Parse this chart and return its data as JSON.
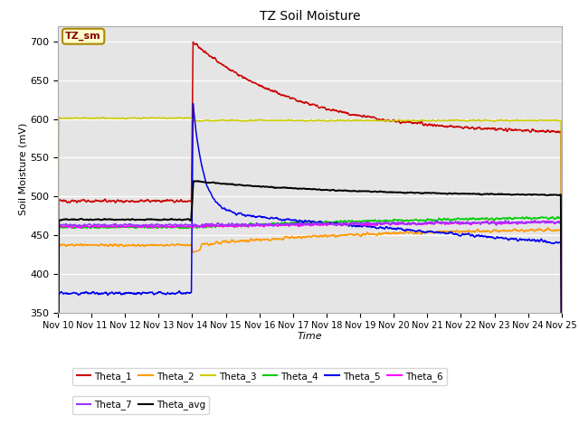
{
  "title": "TZ Soil Moisture",
  "xlabel": "Time",
  "ylabel": "Soil Moisture (mV)",
  "ylim": [
    350,
    720
  ],
  "xlim": [
    0,
    15
  ],
  "yticks": [
    350,
    400,
    450,
    500,
    550,
    600,
    650,
    700
  ],
  "xtick_labels": [
    "Nov 10",
    "Nov 11",
    "Nov 12",
    "Nov 13",
    "Nov 14",
    "Nov 15",
    "Nov 16",
    "Nov 17",
    "Nov 18",
    "Nov 19",
    "Nov 20",
    "Nov 21",
    "Nov 22",
    "Nov 23",
    "Nov 24",
    "Nov 25"
  ],
  "background_color": "#e5e5e5",
  "legend_label": "TZ_sm",
  "series_colors": {
    "Theta_1": "#cc0000",
    "Theta_2": "#ff9900",
    "Theta_3": "#cccc00",
    "Theta_4": "#00cc00",
    "Theta_5": "#0000ee",
    "Theta_6": "#ff00ff",
    "Theta_7": "#9933ff",
    "Theta_avg": "#000000"
  },
  "legend_row1": [
    "Theta_1",
    "Theta_2",
    "Theta_3",
    "Theta_4",
    "Theta_5",
    "Theta_6"
  ],
  "legend_row2": [
    "Theta_7",
    "Theta_avg"
  ]
}
